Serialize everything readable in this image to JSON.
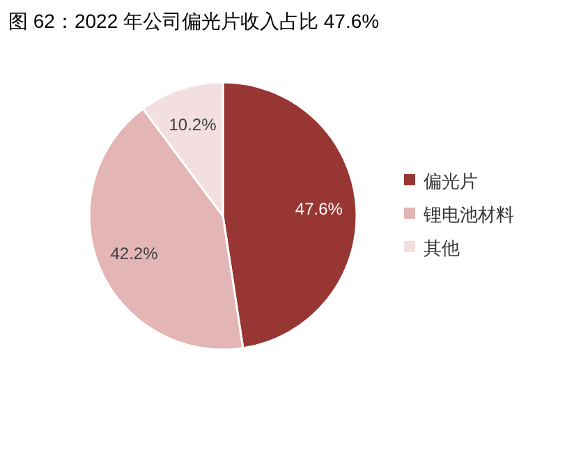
{
  "chart_data": {
    "type": "pie",
    "title": "图 62：2022 年公司偏光片收入占比 47.6%",
    "categories": [
      "偏光片",
      "锂电池材料",
      "其他"
    ],
    "values": [
      47.6,
      42.2,
      10.2
    ],
    "colors": [
      "#983634",
      "#e3b5b4",
      "#f3dfdf"
    ],
    "value_labels": [
      "47.6%",
      "42.2%",
      "10.2%"
    ],
    "legend": "right"
  }
}
